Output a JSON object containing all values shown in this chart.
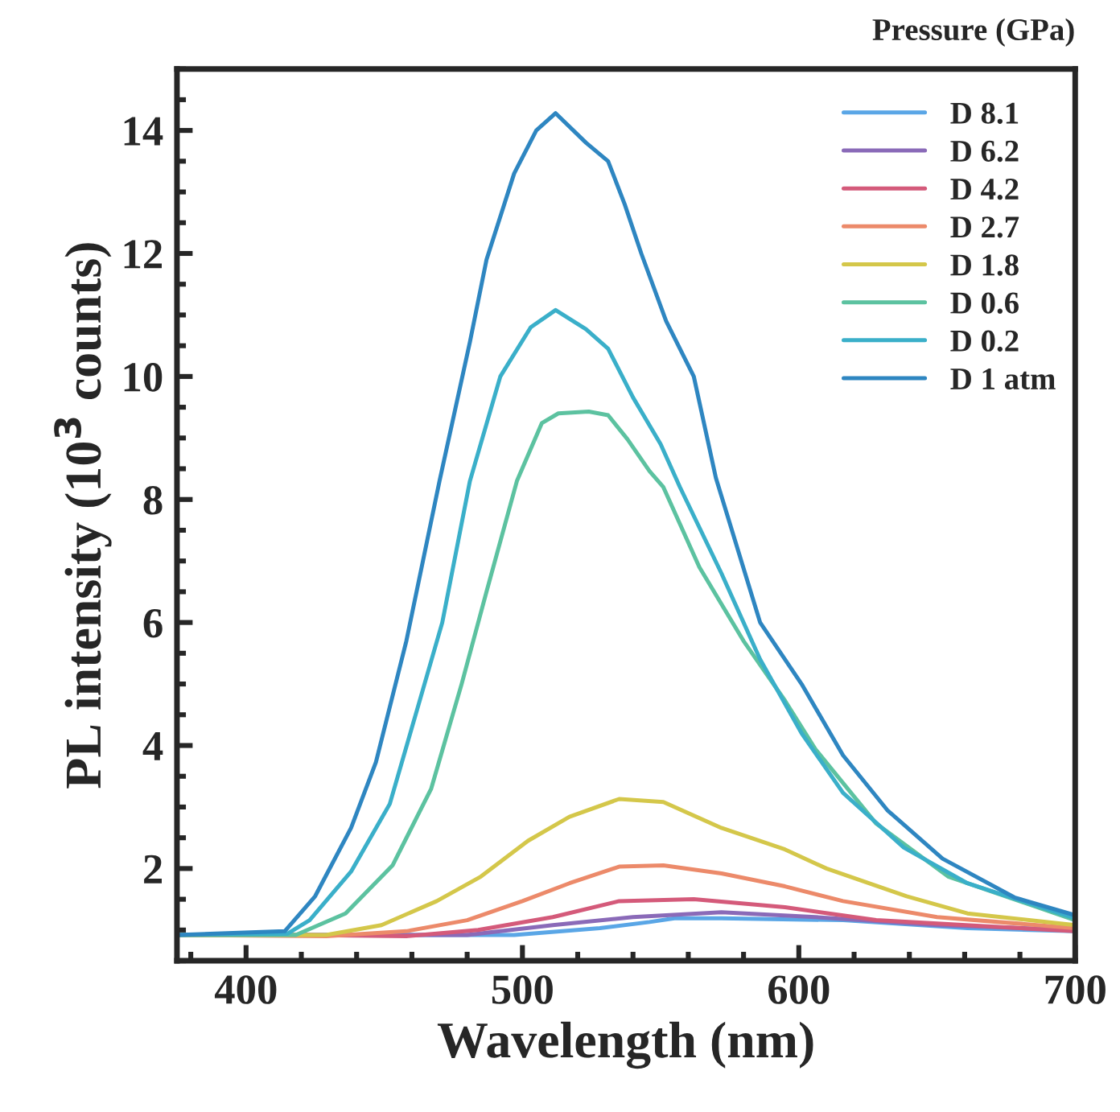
{
  "chart_data": {
    "type": "line",
    "xlabel": "Wavelength (nm)",
    "ylabel": "PL intensity (10$^{3}$ counts)",
    "legend_title": "Pressure (GPa)",
    "legend": "top right",
    "grid": false,
    "marker": "none",
    "line_style": "solid",
    "xlim": [
      375,
      700
    ],
    "xticks": [
      400,
      500,
      600,
      700
    ],
    "ylim": [
      0.5,
      15
    ],
    "yticks": [
      2,
      4,
      6,
      8,
      10,
      12,
      14
    ],
    "series": [
      {
        "name": "D 8.1",
        "color": "#5aa6e6",
        "x": [
          375,
          420,
          460,
          497,
          528,
          546,
          555,
          572,
          616,
          661,
          700
        ],
        "values": [
          0.92,
          0.92,
          0.92,
          0.92,
          1.03,
          1.13,
          1.19,
          1.19,
          1.16,
          1.03,
          0.98
        ]
      },
      {
        "name": "D 6.2",
        "color": "#8a6ab8",
        "x": [
          375,
          420,
          460,
          480,
          511,
          540,
          572,
          606,
          650,
          700
        ],
        "values": [
          0.92,
          0.92,
          0.92,
          0.92,
          1.08,
          1.21,
          1.29,
          1.21,
          1.08,
          1.0
        ]
      },
      {
        "name": "D 4.2",
        "color": "#d45a7a",
        "x": [
          375,
          420,
          458,
          484,
          511,
          535,
          562,
          595,
          628,
          700
        ],
        "values": [
          0.92,
          0.92,
          0.9,
          1.0,
          1.21,
          1.47,
          1.5,
          1.37,
          1.16,
          0.98
        ]
      },
      {
        "name": "D 2.7",
        "color": "#ec8a6a",
        "x": [
          375,
          429,
          458,
          480,
          500,
          517,
          535,
          551,
          572,
          595,
          616,
          650,
          700
        ],
        "values": [
          0.92,
          0.9,
          0.98,
          1.16,
          1.47,
          1.76,
          2.03,
          2.05,
          1.92,
          1.71,
          1.47,
          1.21,
          1.03
        ]
      },
      {
        "name": "D 1.8",
        "color": "#d4c74a",
        "x": [
          375,
          429,
          449,
          469,
          485,
          502,
          517,
          535,
          551,
          572,
          595,
          610,
          639,
          661,
          700
        ],
        "values": [
          0.92,
          0.92,
          1.08,
          1.47,
          1.87,
          2.45,
          2.84,
          3.13,
          3.08,
          2.66,
          2.31,
          2.0,
          1.55,
          1.27,
          1.08
        ]
      },
      {
        "name": "D 0.6",
        "color": "#5cc2a0",
        "x": [
          375,
          418,
          436,
          453,
          467,
          478,
          487,
          498,
          507,
          513,
          524,
          531,
          538,
          546,
          551,
          564,
          580,
          595,
          606,
          628,
          654,
          700
        ],
        "values": [
          0.92,
          0.92,
          1.27,
          2.05,
          3.3,
          5.0,
          6.5,
          8.3,
          9.24,
          9.4,
          9.43,
          9.37,
          8.98,
          8.46,
          8.2,
          6.9,
          5.7,
          4.73,
          3.94,
          2.73,
          1.87,
          1.16
        ]
      },
      {
        "name": "D 0.2",
        "color": "#3aafc9",
        "x": [
          375,
          415,
          423,
          438,
          452,
          462,
          471,
          481,
          492,
          503,
          512,
          523,
          531,
          540,
          550,
          557,
          572,
          586,
          601,
          616,
          638,
          661,
          700
        ],
        "values": [
          0.92,
          0.94,
          1.16,
          1.95,
          3.05,
          4.6,
          6.0,
          8.3,
          10.0,
          10.8,
          11.08,
          10.77,
          10.45,
          9.66,
          8.9,
          8.2,
          6.8,
          5.4,
          4.2,
          3.23,
          2.34,
          1.76,
          1.19
        ]
      },
      {
        "name": "D 1 atm",
        "color": "#2e86c1",
        "x": [
          375,
          414,
          425,
          438,
          447,
          458,
          470,
          481,
          487,
          497,
          505,
          512,
          523,
          531,
          537,
          543,
          552,
          562,
          570,
          586,
          601,
          616,
          632,
          652,
          678,
          700
        ],
        "values": [
          0.92,
          0.98,
          1.55,
          2.66,
          3.73,
          5.7,
          8.3,
          10.56,
          11.9,
          13.3,
          14.0,
          14.28,
          13.8,
          13.5,
          12.8,
          12.0,
          10.9,
          10.0,
          8.35,
          6.0,
          5.0,
          3.84,
          2.95,
          2.16,
          1.53,
          1.24
        ]
      }
    ]
  }
}
